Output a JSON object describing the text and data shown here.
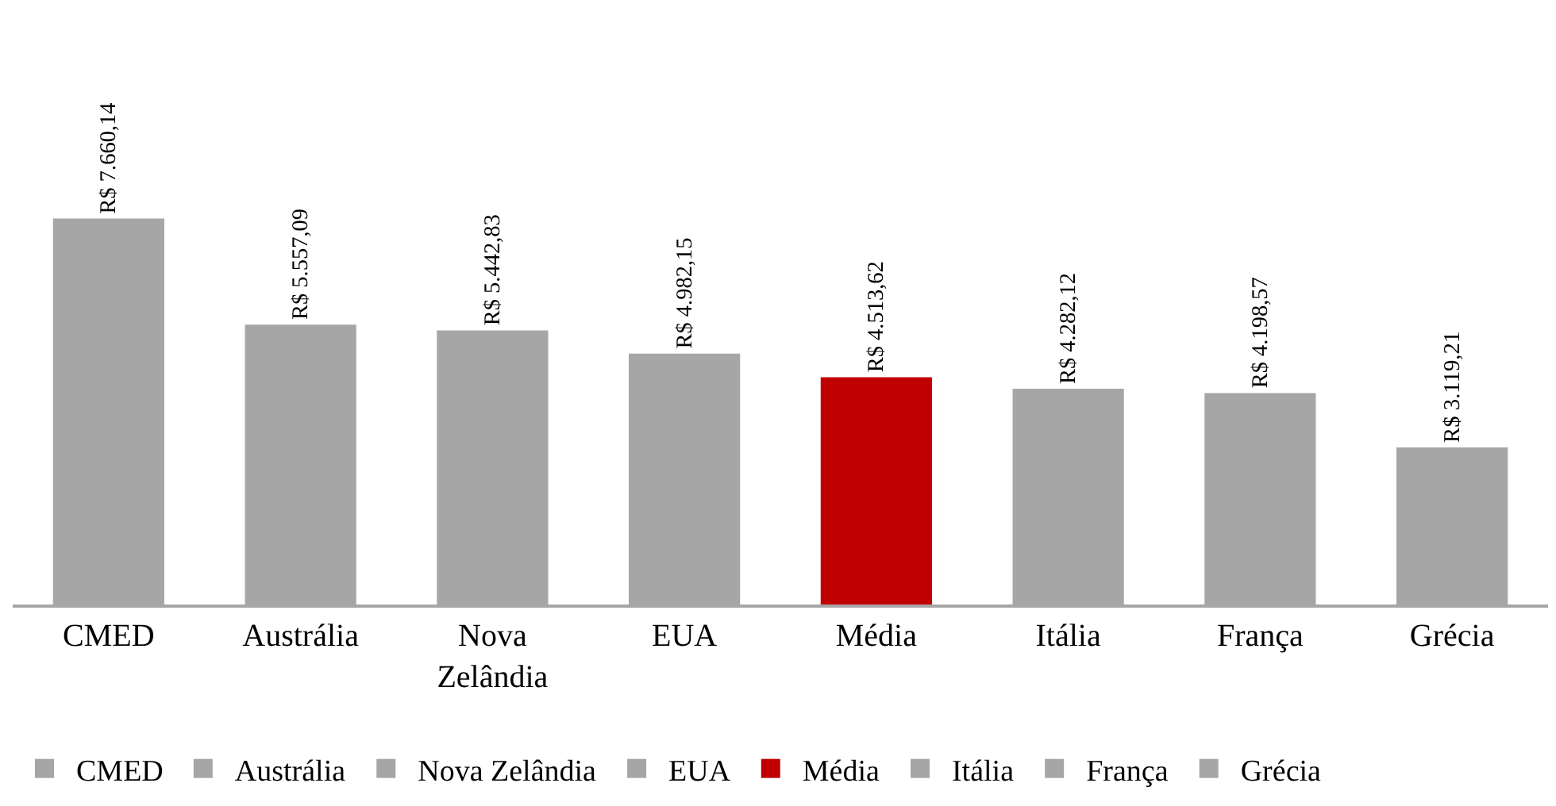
{
  "chart_data": {
    "type": "bar",
    "categories": [
      "CMED",
      "Austrália",
      "Nova Zelândia",
      "EUA",
      "Média",
      "Itália",
      "França",
      "Grécia"
    ],
    "series": [
      {
        "name": "CMED",
        "color": "#a6a6a6",
        "values": [
          7660.14,
          null,
          null,
          null,
          null,
          null,
          null,
          null
        ],
        "value_labels": [
          "R$ 7.660,14",
          null,
          null,
          null,
          null,
          null,
          null,
          null
        ]
      },
      {
        "name": "Austrália",
        "color": "#a6a6a6",
        "values": [
          null,
          5557.09,
          null,
          null,
          null,
          null,
          null,
          null
        ],
        "value_labels": [
          null,
          "R$ 5.557,09",
          null,
          null,
          null,
          null,
          null,
          null
        ]
      },
      {
        "name": "Nova Zelândia",
        "color": "#a6a6a6",
        "values": [
          null,
          null,
          5442.83,
          null,
          null,
          null,
          null,
          null
        ],
        "value_labels": [
          null,
          null,
          "R$ 5.442,83",
          null,
          null,
          null,
          null,
          null
        ]
      },
      {
        "name": "EUA",
        "color": "#a6a6a6",
        "values": [
          null,
          null,
          null,
          4982.15,
          null,
          null,
          null,
          null
        ],
        "value_labels": [
          null,
          null,
          null,
          "R$ 4.982,15",
          null,
          null,
          null,
          null
        ]
      },
      {
        "name": "Média",
        "color": "#c00000",
        "values": [
          null,
          null,
          null,
          null,
          4513.62,
          null,
          null,
          null
        ],
        "value_labels": [
          null,
          null,
          null,
          null,
          "R$ 4.513,62",
          null,
          null,
          null
        ]
      },
      {
        "name": "Itália",
        "color": "#a6a6a6",
        "values": [
          null,
          null,
          null,
          null,
          null,
          4282.12,
          null,
          null
        ],
        "value_labels": [
          null,
          null,
          null,
          null,
          null,
          "R$ 4.282,12",
          null,
          null
        ]
      },
      {
        "name": "França",
        "color": "#a6a6a6",
        "values": [
          null,
          null,
          null,
          null,
          null,
          null,
          4198.57,
          null
        ],
        "value_labels": [
          null,
          null,
          null,
          null,
          null,
          null,
          "R$ 4.198,57",
          null
        ]
      },
      {
        "name": "Grécia",
        "color": "#a6a6a6",
        "values": [
          null,
          null,
          null,
          null,
          null,
          null,
          null,
          3119.21
        ],
        "value_labels": [
          null,
          null,
          null,
          null,
          null,
          null,
          null,
          "R$ 3.119,21"
        ]
      }
    ],
    "tick_labels": "x",
    "legend": "bottom"
  }
}
